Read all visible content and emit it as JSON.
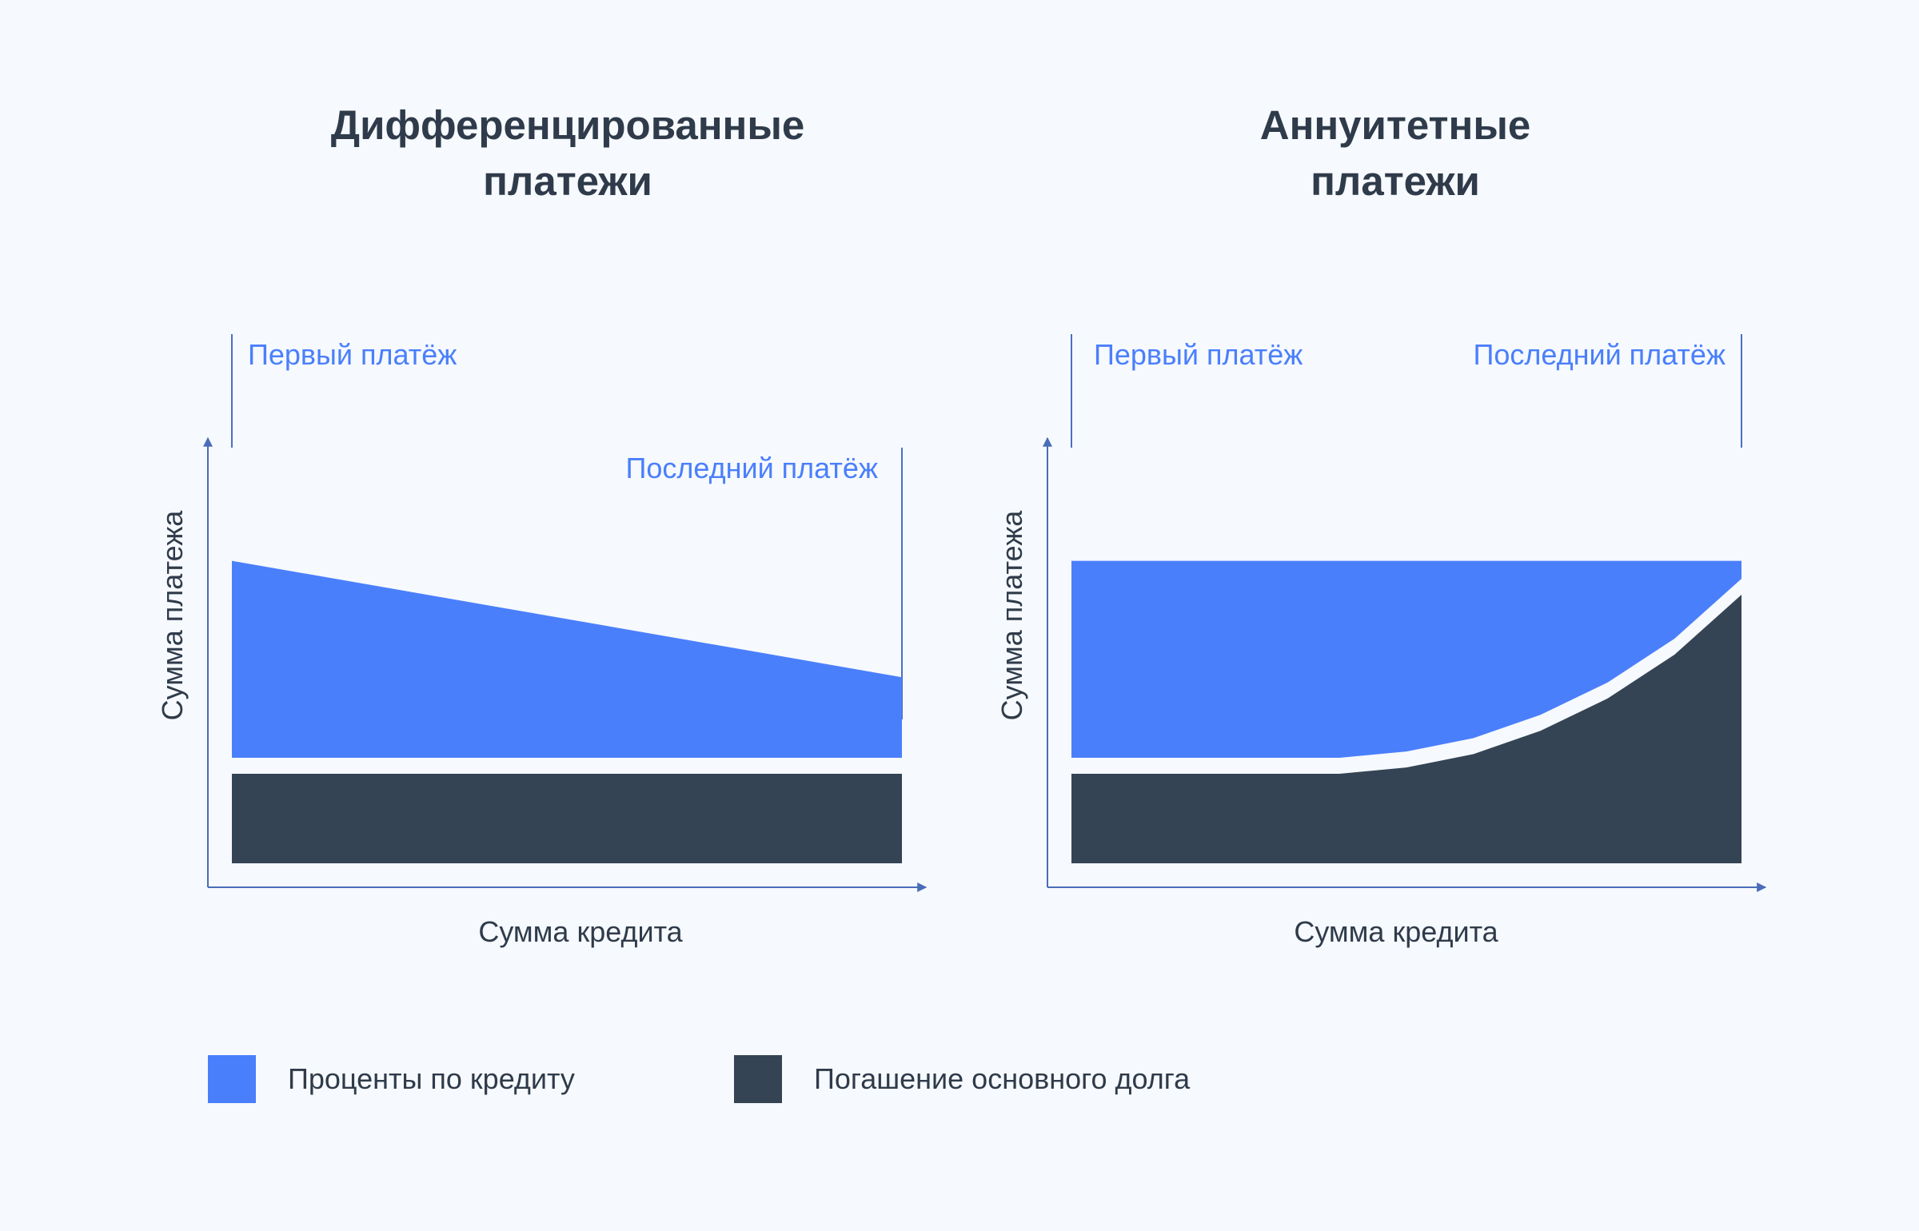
{
  "colors": {
    "interest": "#4a7ffc",
    "principal": "#344454",
    "axis": "#4a6db8",
    "marker_line": "#4a6fc4",
    "text": "#2f3b4a",
    "background": "#f6f9fd"
  },
  "chart_data": [
    {
      "type": "area",
      "title_lines": [
        "Дифференцированные",
        "платежи"
      ],
      "xlabel": "Сумма кредита",
      "ylabel": "Сумма платежа",
      "annotations": {
        "first": "Первый платёж",
        "last": "Последний платёж"
      },
      "x": [
        0,
        1
      ],
      "series": [
        {
          "name": "Проценты по кредиту",
          "values": [
            2.2,
            0.9
          ]
        },
        {
          "name": "Погашение основного долга",
          "values": [
            1,
            1
          ]
        }
      ],
      "grid": false
    },
    {
      "type": "area",
      "title_lines": [
        "Аннуитетные",
        "платежи"
      ],
      "xlabel": "Сумма кредита",
      "ylabel": "Сумма платежа",
      "annotations": {
        "first": "Первый платёж",
        "last": "Последний платёж"
      },
      "x": [
        0,
        0.2,
        0.4,
        0.5,
        0.6,
        0.7,
        0.8,
        0.9,
        1
      ],
      "series": [
        {
          "name": "Проценты по кредиту",
          "values": [
            2.2,
            2.2,
            2.2,
            2.13,
            1.98,
            1.72,
            1.36,
            0.87,
            0.2
          ]
        },
        {
          "name": "Погашение основного долга",
          "values": [
            1,
            1,
            1,
            1.07,
            1.22,
            1.48,
            1.84,
            2.33,
            3.0
          ]
        }
      ],
      "grid": false
    }
  ],
  "legend": [
    {
      "label": "Проценты по кредиту",
      "color": "#4a7ffc"
    },
    {
      "label": "Погашение основного долга",
      "color": "#344454"
    }
  ]
}
